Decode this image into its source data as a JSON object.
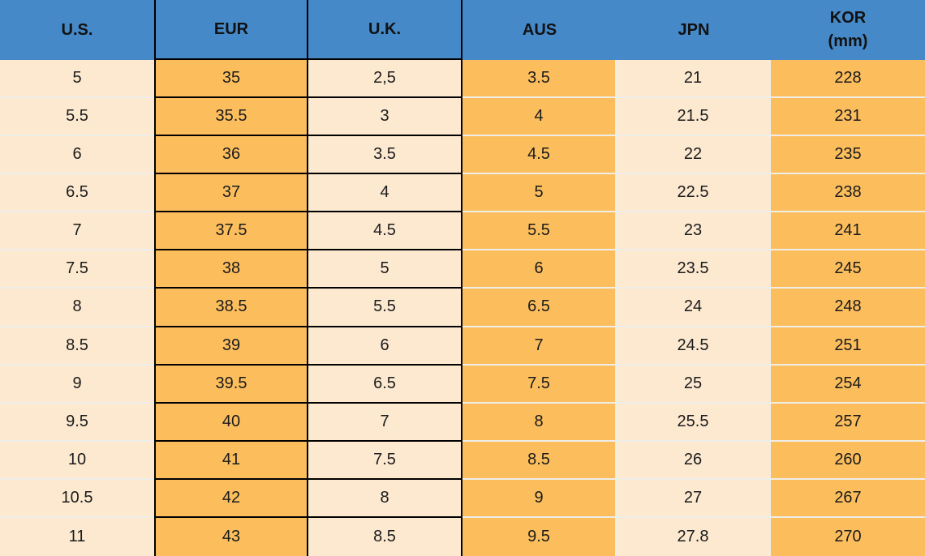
{
  "chart_data": {
    "type": "table",
    "columns": [
      {
        "key": "us",
        "label": "U.S."
      },
      {
        "key": "eur",
        "label": "EUR"
      },
      {
        "key": "uk",
        "label": "U.K."
      },
      {
        "key": "aus",
        "label": "AUS"
      },
      {
        "key": "jpn",
        "label": "JPN"
      },
      {
        "key": "kor",
        "label": "KOR",
        "sublabel": "(mm)"
      }
    ],
    "rows": [
      [
        "5",
        "35",
        "2,5",
        "3.5",
        "21",
        "228"
      ],
      [
        "5.5",
        "35.5",
        "3",
        "4",
        "21.5",
        "231"
      ],
      [
        "6",
        "36",
        "3.5",
        "4.5",
        "22",
        "235"
      ],
      [
        "6.5",
        "37",
        "4",
        "5",
        "22.5",
        "238"
      ],
      [
        "7",
        "37.5",
        "4.5",
        "5.5",
        "23",
        "241"
      ],
      [
        "7.5",
        "38",
        "5",
        "6",
        "23.5",
        "245"
      ],
      [
        "8",
        "38.5",
        "5.5",
        "6.5",
        "24",
        "248"
      ],
      [
        "8.5",
        "39",
        "6",
        "7",
        "24.5",
        "251"
      ],
      [
        "9",
        "39.5",
        "6.5",
        "7.5",
        "25",
        "254"
      ],
      [
        "9.5",
        "40",
        "7",
        "8",
        "25.5",
        "257"
      ],
      [
        "10",
        "41",
        "7.5",
        "8.5",
        "26",
        "260"
      ],
      [
        "10.5",
        "42",
        "8",
        "9",
        "27",
        "267"
      ],
      [
        "11",
        "43",
        "8.5",
        "9.5",
        "27.8",
        "270"
      ]
    ]
  },
  "colors": {
    "header_blue": "#4689C8",
    "cell_orange": "#FCBE5D",
    "cell_cream": "#FCE9D0",
    "border_black": "#000000",
    "separator_light": "#EFEDE8",
    "text": "#1B1B1B"
  }
}
